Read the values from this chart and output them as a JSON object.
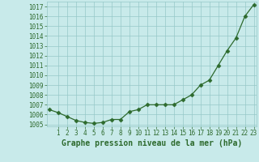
{
  "x": [
    0,
    1,
    2,
    3,
    4,
    5,
    6,
    7,
    8,
    9,
    10,
    11,
    12,
    13,
    14,
    15,
    16,
    17,
    18,
    19,
    20,
    21,
    22,
    23
  ],
  "y": [
    1006.5,
    1006.2,
    1005.8,
    1005.4,
    1005.2,
    1005.1,
    1005.2,
    1005.5,
    1005.5,
    1006.3,
    1006.5,
    1007.0,
    1007.0,
    1007.0,
    1007.0,
    1007.5,
    1008.0,
    1009.0,
    1009.5,
    1011.0,
    1012.5,
    1013.8,
    1016.0,
    1017.2
  ],
  "ylim": [
    1004.8,
    1017.5
  ],
  "yticks": [
    1005,
    1006,
    1007,
    1008,
    1009,
    1010,
    1011,
    1012,
    1013,
    1014,
    1015,
    1016,
    1017
  ],
  "xlim": [
    -0.3,
    23.3
  ],
  "xticks": [
    1,
    2,
    3,
    4,
    5,
    6,
    7,
    8,
    9,
    10,
    11,
    12,
    13,
    14,
    15,
    16,
    17,
    18,
    19,
    20,
    21,
    22,
    23
  ],
  "xtick_labels": [
    "1",
    "2",
    "3",
    "4",
    "5",
    "6",
    "7",
    "8",
    "9",
    "10",
    "11",
    "12",
    "13",
    "14",
    "15",
    "16",
    "17",
    "18",
    "19",
    "20",
    "21",
    "22",
    "23"
  ],
  "xlabel": "Graphe pression niveau de la mer (hPa)",
  "line_color": "#2d6a2d",
  "marker": "D",
  "marker_size": 2.5,
  "bg_color": "#c8eaea",
  "plot_bg_color": "#c8eaea",
  "grid_color": "#96c8c8",
  "axis_label_color": "#2d6a2d",
  "tick_label_color": "#2d6a2d",
  "tick_label_fontsize": 5.5,
  "xlabel_fontsize": 7.0,
  "linewidth": 0.9
}
